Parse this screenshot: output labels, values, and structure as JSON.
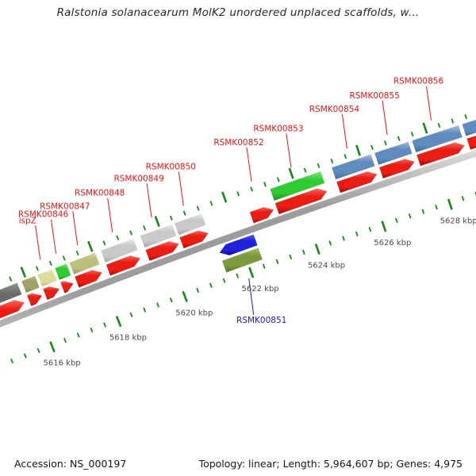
{
  "title": "Ralstonia solanacearum MolK2 unordered unplaced scaffolds, w...",
  "footer": {
    "accession": "Accession: NS_000197",
    "stats": "Topology: linear; Length: 5,964,607 bp; Genes: 4,975"
  },
  "chart_data": {
    "type": "genome-map-arc",
    "description": "Zoomed segment of a circular genome map; backbone arc with forward genes above (red gene arrows + functional-colored CDS blocks) and reverse genes below; green tick ruler inside and outside",
    "ruler": {
      "unit": "kbp",
      "label_suffix": " kbp",
      "minor_interval_kbp": 0.4,
      "major_interval_kbp": 2,
      "visible_range_kbp": [
        5613.4,
        5629.9
      ],
      "labeled_majors": [
        5616,
        5618,
        5620,
        5622,
        5624,
        5626,
        5628
      ],
      "tick_color": "#178717",
      "label_color": "#4a4a4a"
    },
    "label_colors": {
      "normal": "#f50f0f",
      "selected": "#1515e6"
    },
    "gene_arrow_colors": {
      "normal": "red",
      "selected": "blue_sel"
    },
    "palette": {
      "red": {
        "light": "#ff6a60",
        "base": "#ec1c12",
        "dark": "#9c0000"
      },
      "gray": {
        "light": "#efefef",
        "base": "#c9c9c9",
        "dark": "#9e9e9e"
      },
      "dark_gray": {
        "light": "#9a9a9a",
        "base": "#6b6b6b",
        "dark": "#474747"
      },
      "khaki_dark": {
        "light": "#c6c694",
        "base": "#a2a266",
        "dark": "#73734a"
      },
      "khaki_pale": {
        "light": "#f0f0c0",
        "base": "#dbdb9a",
        "dark": "#b5b575"
      },
      "khaki_mid": {
        "light": "#d8d8a8",
        "base": "#bebe7e",
        "dark": "#90905c"
      },
      "green": {
        "light": "#7fe87f",
        "base": "#2ecc2e",
        "dark": "#0f8f0f"
      },
      "steel_blue": {
        "light": "#a8c2da",
        "base": "#5e8cbe",
        "dark": "#39689a"
      },
      "blue_sel": {
        "light": "#5f5fff",
        "base": "#2121e0",
        "dark": "#0d0d96"
      },
      "olive": {
        "light": "#abc470",
        "base": "#7d9b3c",
        "dark": "#556f22"
      },
      "backbone": {
        "light": "#e6e6e6",
        "base": "#9c9c9c",
        "dark": "#c2c2c2"
      }
    },
    "genes": [
      {
        "name": null,
        "strand": "+",
        "start_kbp": 5614.0,
        "end_kbp": 5615.75,
        "cds_color": "dark_gray",
        "selected": false
      },
      {
        "name": null,
        "strand": "+",
        "start_kbp": 5615.85,
        "end_kbp": 5616.28,
        "cds_color": "khaki_dark",
        "selected": false
      },
      {
        "name": "ispZ",
        "strand": "+",
        "start_kbp": 5616.33,
        "end_kbp": 5616.8,
        "cds_color": "khaki_pale",
        "selected": false
      },
      {
        "name": "RSMK00846",
        "strand": "+",
        "start_kbp": 5616.85,
        "end_kbp": 5617.22,
        "cds_color": "green",
        "selected": false
      },
      {
        "name": "RSMK00847",
        "strand": "+",
        "start_kbp": 5617.28,
        "end_kbp": 5618.08,
        "cds_color": "khaki_mid",
        "selected": false
      },
      {
        "name": "RSMK00848",
        "strand": "+",
        "start_kbp": 5618.22,
        "end_kbp": 5619.22,
        "cds_color": "gray",
        "selected": false
      },
      {
        "name": "RSMK00849",
        "strand": "+",
        "start_kbp": 5619.4,
        "end_kbp": 5620.38,
        "cds_color": "gray",
        "selected": false
      },
      {
        "name": "RSMK00850",
        "strand": "+",
        "start_kbp": 5620.42,
        "end_kbp": 5621.26,
        "cds_color": "gray",
        "selected": false
      },
      {
        "name": "RSMK00851",
        "strand": "-",
        "start_kbp": 5621.32,
        "end_kbp": 5622.44,
        "cds_color": "olive",
        "selected": true
      },
      {
        "name": "RSMK00852",
        "strand": "+",
        "start_kbp": 5622.52,
        "end_kbp": 5623.22,
        "cds_color": null,
        "selected": false
      },
      {
        "name": "RSMK00853",
        "strand": "+",
        "start_kbp": 5623.28,
        "end_kbp": 5624.82,
        "cds_color": "green",
        "selected": false
      },
      {
        "name": "RSMK00854",
        "strand": "+",
        "start_kbp": 5625.12,
        "end_kbp": 5626.32,
        "cds_color": "steel_blue",
        "selected": false
      },
      {
        "name": "RSMK00855",
        "strand": "+",
        "start_kbp": 5626.4,
        "end_kbp": 5627.44,
        "cds_color": "steel_blue",
        "selected": false
      },
      {
        "name": "RSMK00856",
        "strand": "+",
        "start_kbp": 5627.52,
        "end_kbp": 5628.94,
        "cds_color": "steel_blue",
        "selected": false
      },
      {
        "name": null,
        "strand": "+",
        "start_kbp": 5629.02,
        "end_kbp": 5629.9,
        "cds_color": "steel_blue",
        "selected": false
      }
    ]
  }
}
